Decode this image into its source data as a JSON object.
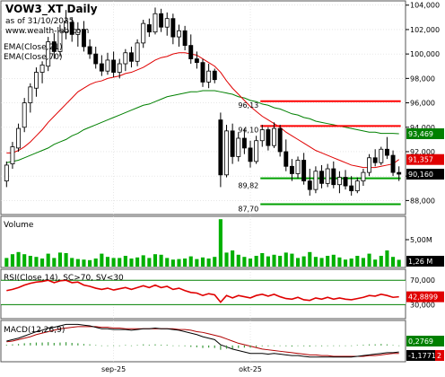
{
  "chart_data": {
    "type": "candlestick",
    "title": "VOW3_XT Daily",
    "date_note": "as of 31/10/2025",
    "source": "www.wealth-lab.com",
    "x_labels": [
      {
        "label": "sep-25",
        "index": 18
      },
      {
        "label": "okt-25",
        "index": 41
      }
    ],
    "price_axis": {
      "ylim": [
        87.0,
        104.2
      ],
      "ticks": [
        88.0,
        90.0,
        92.0,
        94.0,
        96.0,
        98.0,
        100.0,
        102.0,
        104.0
      ],
      "tick_labels": [
        "88,000",
        "90,000",
        "92,000",
        "94,000",
        "96,000",
        "98,000",
        "100,000",
        "102,000",
        "104,000"
      ]
    },
    "indicator_labels": [
      "EMA(Close,21)",
      "EMA(Close,70)"
    ],
    "candles": [
      {
        "o": 89.6,
        "h": 91.2,
        "l": 89.1,
        "c": 90.9
      },
      {
        "o": 91.0,
        "h": 92.8,
        "l": 90.6,
        "c": 92.4
      },
      {
        "o": 92.3,
        "h": 94.3,
        "l": 92.0,
        "c": 93.9
      },
      {
        "o": 94.0,
        "h": 96.4,
        "l": 93.6,
        "c": 96.0
      },
      {
        "o": 96.0,
        "h": 97.6,
        "l": 95.2,
        "c": 97.3
      },
      {
        "o": 97.2,
        "h": 98.9,
        "l": 96.5,
        "c": 98.5
      },
      {
        "o": 98.5,
        "h": 99.4,
        "l": 97.6,
        "c": 99.1
      },
      {
        "o": 99.0,
        "h": 101.4,
        "l": 98.6,
        "c": 101.0
      },
      {
        "o": 101.0,
        "h": 101.7,
        "l": 99.6,
        "c": 100.2
      },
      {
        "o": 100.2,
        "h": 102.4,
        "l": 99.8,
        "c": 101.9
      },
      {
        "o": 101.8,
        "h": 103.6,
        "l": 101.2,
        "c": 102.7
      },
      {
        "o": 102.6,
        "h": 103.0,
        "l": 101.0,
        "c": 101.6
      },
      {
        "o": 101.6,
        "h": 102.6,
        "l": 100.6,
        "c": 102.0
      },
      {
        "o": 102.0,
        "h": 102.7,
        "l": 100.2,
        "c": 100.6
      },
      {
        "o": 100.6,
        "h": 101.2,
        "l": 99.6,
        "c": 100.0
      },
      {
        "o": 100.0,
        "h": 100.6,
        "l": 98.8,
        "c": 99.2
      },
      {
        "o": 99.2,
        "h": 99.9,
        "l": 98.2,
        "c": 98.6
      },
      {
        "o": 98.6,
        "h": 100.1,
        "l": 98.3,
        "c": 99.5
      },
      {
        "o": 99.5,
        "h": 100.2,
        "l": 98.1,
        "c": 98.5
      },
      {
        "o": 98.5,
        "h": 99.6,
        "l": 98.0,
        "c": 99.2
      },
      {
        "o": 99.2,
        "h": 100.4,
        "l": 98.6,
        "c": 100.1
      },
      {
        "o": 100.1,
        "h": 100.6,
        "l": 98.9,
        "c": 99.4
      },
      {
        "o": 99.4,
        "h": 101.2,
        "l": 99.0,
        "c": 100.9
      },
      {
        "o": 100.9,
        "h": 102.8,
        "l": 100.5,
        "c": 102.5
      },
      {
        "o": 102.4,
        "h": 102.9,
        "l": 101.4,
        "c": 101.8
      },
      {
        "o": 101.8,
        "h": 103.8,
        "l": 101.6,
        "c": 103.3
      },
      {
        "o": 103.3,
        "h": 103.7,
        "l": 101.8,
        "c": 102.2
      },
      {
        "o": 102.2,
        "h": 103.4,
        "l": 101.5,
        "c": 102.9
      },
      {
        "o": 102.9,
        "h": 103.3,
        "l": 100.8,
        "c": 101.4
      },
      {
        "o": 101.4,
        "h": 102.4,
        "l": 100.6,
        "c": 101.9
      },
      {
        "o": 101.9,
        "h": 102.3,
        "l": 100.3,
        "c": 100.7
      },
      {
        "o": 100.7,
        "h": 101.6,
        "l": 99.2,
        "c": 99.6
      },
      {
        "o": 99.6,
        "h": 100.2,
        "l": 98.8,
        "c": 99.3
      },
      {
        "o": 99.3,
        "h": 99.6,
        "l": 97.3,
        "c": 97.7
      },
      {
        "o": 97.7,
        "h": 99.2,
        "l": 97.2,
        "c": 98.6
      },
      {
        "o": 98.6,
        "h": 98.8,
        "l": 97.6,
        "c": 97.9
      },
      {
        "o": 94.6,
        "h": 95.2,
        "l": 89.1,
        "c": 90.1
      },
      {
        "o": 90.1,
        "h": 94.2,
        "l": 89.9,
        "c": 93.7
      },
      {
        "o": 93.7,
        "h": 94.3,
        "l": 91.0,
        "c": 91.6
      },
      {
        "o": 91.6,
        "h": 93.6,
        "l": 91.2,
        "c": 93.1
      },
      {
        "o": 93.1,
        "h": 93.9,
        "l": 91.8,
        "c": 92.3
      },
      {
        "o": 92.3,
        "h": 92.9,
        "l": 90.7,
        "c": 91.2
      },
      {
        "o": 91.2,
        "h": 93.3,
        "l": 91.0,
        "c": 92.9
      },
      {
        "o": 92.9,
        "h": 94.2,
        "l": 92.4,
        "c": 93.8
      },
      {
        "o": 93.8,
        "h": 94.0,
        "l": 92.1,
        "c": 92.5
      },
      {
        "o": 92.5,
        "h": 94.4,
        "l": 92.3,
        "c": 93.9
      },
      {
        "o": 93.9,
        "h": 94.2,
        "l": 91.6,
        "c": 92.0
      },
      {
        "o": 92.0,
        "h": 93.0,
        "l": 90.4,
        "c": 90.8
      },
      {
        "o": 90.8,
        "h": 91.4,
        "l": 89.6,
        "c": 90.2
      },
      {
        "o": 90.2,
        "h": 91.6,
        "l": 89.8,
        "c": 91.3
      },
      {
        "o": 91.3,
        "h": 91.9,
        "l": 89.3,
        "c": 89.6
      },
      {
        "o": 89.6,
        "h": 90.6,
        "l": 88.4,
        "c": 88.9
      },
      {
        "o": 88.9,
        "h": 90.8,
        "l": 88.6,
        "c": 90.4
      },
      {
        "o": 90.4,
        "h": 90.9,
        "l": 89.0,
        "c": 89.4
      },
      {
        "o": 89.4,
        "h": 91.0,
        "l": 89.1,
        "c": 90.6
      },
      {
        "o": 90.6,
        "h": 91.2,
        "l": 89.0,
        "c": 89.3
      },
      {
        "o": 89.3,
        "h": 90.4,
        "l": 88.6,
        "c": 89.9
      },
      {
        "o": 89.9,
        "h": 90.5,
        "l": 88.9,
        "c": 89.2
      },
      {
        "o": 89.2,
        "h": 90.0,
        "l": 88.4,
        "c": 88.8
      },
      {
        "o": 88.8,
        "h": 89.9,
        "l": 88.6,
        "c": 89.6
      },
      {
        "o": 89.6,
        "h": 90.6,
        "l": 89.2,
        "c": 90.3
      },
      {
        "o": 90.3,
        "h": 91.8,
        "l": 90.0,
        "c": 91.5
      },
      {
        "o": 91.5,
        "h": 92.2,
        "l": 90.8,
        "c": 91.1
      },
      {
        "o": 91.1,
        "h": 92.4,
        "l": 90.9,
        "c": 92.2
      },
      {
        "o": 92.2,
        "h": 93.2,
        "l": 91.4,
        "c": 91.7
      },
      {
        "o": 91.7,
        "h": 92.1,
        "l": 90.0,
        "c": 90.3
      },
      {
        "o": 90.3,
        "h": 90.8,
        "l": 89.6,
        "c": 90.16
      }
    ],
    "ema21": [
      91.9,
      91.9,
      92.1,
      92.4,
      92.8,
      93.3,
      93.8,
      94.4,
      94.9,
      95.4,
      95.9,
      96.4,
      96.9,
      97.2,
      97.5,
      97.7,
      97.8,
      98.0,
      98.1,
      98.2,
      98.4,
      98.5,
      98.7,
      98.9,
      99.2,
      99.5,
      99.7,
      99.8,
      100.0,
      100.1,
      100.1,
      100.0,
      99.9,
      99.6,
      99.3,
      99.0,
      98.5,
      97.8,
      97.2,
      96.7,
      96.2,
      95.7,
      95.3,
      94.9,
      94.6,
      94.3,
      94.0,
      93.6,
      93.3,
      93.0,
      92.7,
      92.4,
      92.1,
      91.9,
      91.7,
      91.5,
      91.3,
      91.1,
      90.9,
      90.8,
      90.7,
      90.7,
      90.7,
      90.8,
      90.9,
      91.0,
      91.36
    ],
    "ema70": [
      91.1,
      91.2,
      91.3,
      91.5,
      91.7,
      91.9,
      92.1,
      92.3,
      92.6,
      92.8,
      93.0,
      93.3,
      93.5,
      93.8,
      94.0,
      94.2,
      94.4,
      94.6,
      94.8,
      95.0,
      95.2,
      95.4,
      95.6,
      95.8,
      95.9,
      96.1,
      96.3,
      96.5,
      96.6,
      96.7,
      96.8,
      96.9,
      96.9,
      97.0,
      97.0,
      97.0,
      96.9,
      96.8,
      96.7,
      96.5,
      96.4,
      96.2,
      96.1,
      95.9,
      95.8,
      95.6,
      95.5,
      95.3,
      95.1,
      95.0,
      94.8,
      94.7,
      94.5,
      94.4,
      94.3,
      94.2,
      94.1,
      94.0,
      93.9,
      93.8,
      93.7,
      93.6,
      93.6,
      93.5,
      93.5,
      93.5,
      93.469
    ],
    "levels": [
      {
        "value": 96.13,
        "label": "96,13",
        "color": "#ff0000",
        "from": 43,
        "to": 66
      },
      {
        "value": 94.1,
        "label": "94,10",
        "color": "#ff0000",
        "from": 43,
        "to": 66
      },
      {
        "value": 89.82,
        "label": "89,82",
        "color": "#00a000",
        "from": 43,
        "to": 66
      },
      {
        "value": 87.7,
        "label": "87,70",
        "color": "#00a000",
        "from": 43,
        "to": 66
      }
    ],
    "price_tags": [
      {
        "value": 93.469,
        "label": "93,469",
        "color": "#008000"
      },
      {
        "value": 91.357,
        "label": "91,357",
        "color": "#e00000"
      },
      {
        "value": 90.16,
        "label": "90,160",
        "color": "#000000"
      }
    ],
    "volume": {
      "label": "Volume",
      "ticks": [
        {
          "value": 5000000,
          "label": "5,00M"
        }
      ],
      "last_label": "1,26 M",
      "ymax": 9000000,
      "values": [
        1.6,
        2.3,
        2.7,
        2.3,
        2.0,
        1.8,
        1.5,
        2.4,
        1.6,
        2.6,
        2.5,
        1.6,
        1.4,
        1.3,
        1.2,
        1.5,
        2.4,
        1.8,
        1.6,
        1.6,
        2.0,
        1.5,
        1.7,
        2.1,
        1.6,
        2.3,
        2.2,
        1.6,
        1.3,
        1.4,
        1.5,
        1.9,
        1.4,
        1.7,
        1.5,
        1.8,
        8.8,
        2.6,
        3.0,
        2.2,
        1.8,
        1.5,
        2.0,
        2.5,
        1.9,
        2.2,
        2.0,
        2.6,
        2.4,
        1.6,
        1.9,
        2.7,
        1.8,
        1.6,
        2.0,
        2.2,
        1.7,
        1.3,
        1.5,
        2.0,
        1.6,
        2.4,
        1.3,
        2.0,
        3.0,
        1.8,
        1.26
      ]
    },
    "rsi": {
      "label": "RSI(Close,14), SC>70, SV<30",
      "ticks": [
        {
          "value": 70,
          "label": "70,000"
        },
        {
          "value": 30,
          "label": "30,000"
        }
      ],
      "last_label": "42,8899",
      "values": [
        53,
        55,
        58,
        62,
        65,
        67,
        68,
        70,
        66,
        69,
        70,
        66,
        67,
        62,
        60,
        57,
        55,
        57,
        54,
        56,
        58,
        55,
        58,
        61,
        58,
        62,
        58,
        60,
        55,
        57,
        53,
        50,
        49,
        45,
        48,
        46,
        34,
        45,
        41,
        45,
        43,
        41,
        45,
        47,
        44,
        47,
        43,
        40,
        39,
        42,
        38,
        37,
        41,
        39,
        42,
        39,
        41,
        39,
        38,
        40,
        42,
        45,
        44,
        47,
        45,
        42,
        42.8899
      ]
    },
    "macd": {
      "label": "MACD(12,26,9)",
      "ticks": [
        {
          "value": 0.2769,
          "label": "0,2769"
        },
        {
          "value": -1.1771,
          "label": "-1,1771"
        }
      ],
      "badge": "2",
      "hist": [
        0.1,
        0.15,
        0.2,
        0.3,
        0.35,
        0.4,
        0.4,
        0.45,
        0.35,
        0.4,
        0.45,
        0.35,
        0.3,
        0.2,
        0.15,
        0.05,
        -0.05,
        0.0,
        -0.05,
        0.0,
        0.05,
        0.0,
        0.05,
        0.15,
        0.1,
        0.15,
        0.1,
        0.1,
        0.0,
        0.0,
        -0.1,
        -0.2,
        -0.25,
        -0.35,
        -0.3,
        -0.35,
        -0.6,
        -0.45,
        -0.45,
        -0.35,
        -0.3,
        -0.3,
        -0.2,
        -0.1,
        -0.1,
        0.0,
        -0.05,
        -0.1,
        -0.15,
        -0.05,
        -0.1,
        -0.15,
        -0.05,
        -0.1,
        0.0,
        -0.05,
        0.0,
        0.0,
        -0.05,
        0.05,
        0.1,
        0.15,
        0.15,
        0.2,
        0.15,
        0.05,
        0.0
      ],
      "macd_line": [
        0.6,
        0.8,
        1.0,
        1.3,
        1.6,
        1.9,
        2.1,
        2.4,
        2.5,
        2.7,
        2.9,
        2.9,
        2.9,
        2.8,
        2.7,
        2.5,
        2.3,
        2.3,
        2.2,
        2.2,
        2.2,
        2.1,
        2.2,
        2.3,
        2.3,
        2.4,
        2.3,
        2.3,
        2.2,
        2.1,
        1.9,
        1.7,
        1.5,
        1.2,
        1.0,
        0.8,
        0.1,
        -0.2,
        -0.5,
        -0.7,
        -0.9,
        -1.1,
        -1.1,
        -1.1,
        -1.2,
        -1.1,
        -1.2,
        -1.3,
        -1.4,
        -1.4,
        -1.5,
        -1.6,
        -1.6,
        -1.6,
        -1.6,
        -1.6,
        -1.6,
        -1.6,
        -1.6,
        -1.5,
        -1.4,
        -1.3,
        -1.2,
        -1.1,
        -1.0,
        -1.0,
        -0.9
      ],
      "signal_line": [
        0.5,
        0.6,
        0.8,
        1.0,
        1.2,
        1.5,
        1.7,
        1.9,
        2.1,
        2.3,
        2.4,
        2.5,
        2.6,
        2.6,
        2.6,
        2.6,
        2.5,
        2.5,
        2.4,
        2.4,
        2.3,
        2.3,
        2.3,
        2.3,
        2.3,
        2.3,
        2.3,
        2.3,
        2.3,
        2.2,
        2.2,
        2.1,
        1.9,
        1.8,
        1.6,
        1.4,
        1.2,
        0.9,
        0.6,
        0.3,
        0.1,
        -0.1,
        -0.3,
        -0.5,
        -0.6,
        -0.7,
        -0.8,
        -0.9,
        -1.0,
        -1.1,
        -1.2,
        -1.3,
        -1.3,
        -1.4,
        -1.4,
        -1.5,
        -1.5,
        -1.5,
        -1.5,
        -1.5,
        -1.5,
        -1.4,
        -1.4,
        -1.3,
        -1.2,
        -1.1,
        -1.1
      ]
    }
  }
}
